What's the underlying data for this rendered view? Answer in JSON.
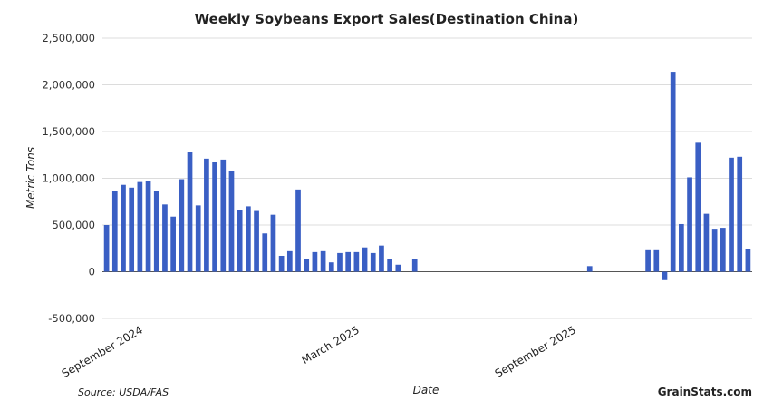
{
  "chart_data": {
    "type": "bar",
    "title": "Weekly Soybeans Export Sales(Destination China)",
    "xlabel": "Date",
    "ylabel": "Metric Tons",
    "ylim": [
      -500000,
      2500000
    ],
    "yticks": [
      -500000,
      0,
      500000,
      1000000,
      1500000,
      2000000,
      2500000
    ],
    "ytick_labels": [
      "-500,000",
      "0",
      "500,000",
      "1,000,000",
      "1,500,000",
      "2,000,000",
      "2,500,000"
    ],
    "xtick_labels": [
      {
        "label": "September 2024",
        "week_index": 4
      },
      {
        "label": "March 2025",
        "week_index": 30
      },
      {
        "label": "September 2025",
        "week_index": 56
      }
    ],
    "grid": true,
    "bar_color": "#3a5fc4",
    "values": [
      500000,
      860000,
      930000,
      900000,
      960000,
      970000,
      860000,
      720000,
      590000,
      990000,
      1280000,
      710000,
      1210000,
      1170000,
      1200000,
      1080000,
      660000,
      700000,
      650000,
      410000,
      610000,
      170000,
      220000,
      880000,
      140000,
      210000,
      220000,
      100000,
      200000,
      210000,
      210000,
      260000,
      200000,
      280000,
      140000,
      75000,
      0,
      140000,
      0,
      0,
      0,
      0,
      0,
      0,
      0,
      0,
      0,
      0,
      0,
      0,
      0,
      0,
      0,
      0,
      0,
      0,
      0,
      0,
      60000,
      0,
      0,
      0,
      0,
      0,
      0,
      230000,
      230000,
      -90000,
      2140000,
      510000,
      1010000,
      1380000,
      620000,
      460000,
      470000,
      1220000,
      1230000,
      240000
    ]
  },
  "footer": {
    "source": "Source: USDA/FAS",
    "brand": "GrainStats.com"
  }
}
